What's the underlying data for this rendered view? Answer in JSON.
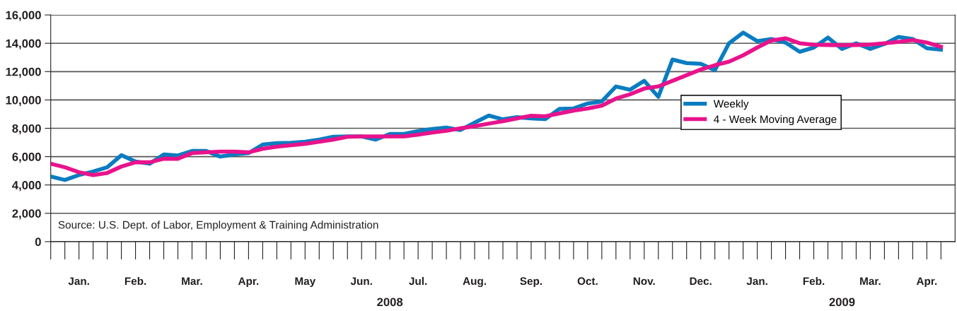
{
  "chart_data": {
    "type": "line",
    "categories": [
      null,
      null,
      "Jan.",
      null,
      null,
      null,
      "Feb.",
      null,
      null,
      null,
      "Mar.",
      null,
      null,
      null,
      "Apr.",
      null,
      null,
      null,
      "May",
      null,
      null,
      null,
      "Jun.",
      null,
      null,
      null,
      "Jul.",
      null,
      null,
      null,
      "Aug.",
      null,
      null,
      null,
      "Sep.",
      null,
      null,
      null,
      "Oct.",
      null,
      null,
      null,
      "Nov.",
      null,
      null,
      null,
      "Dec.",
      null,
      null,
      null,
      "Jan.",
      null,
      null,
      null,
      "Feb.",
      null,
      null,
      null,
      "Mar.",
      null,
      null,
      null,
      "Apr.",
      null
    ],
    "series": [
      {
        "name": "Weekly",
        "color": "#0a7cc1",
        "values": [
          4600,
          4350,
          4700,
          4950,
          5250,
          6100,
          5650,
          5500,
          6150,
          6080,
          6400,
          6400,
          6000,
          6150,
          6250,
          6850,
          6950,
          6980,
          7050,
          7200,
          7400,
          7430,
          7430,
          7200,
          7600,
          7600,
          7800,
          7950,
          8050,
          7880,
          8400,
          8900,
          8630,
          8780,
          8700,
          8650,
          9370,
          9400,
          9750,
          9900,
          10950,
          10720,
          11350,
          10220,
          12850,
          12600,
          12550,
          12100,
          14000,
          14750,
          14150,
          14300,
          14050,
          13400,
          13700,
          14400,
          13600,
          14000,
          13600,
          13950,
          14450,
          14300,
          13650,
          13550
        ]
      },
      {
        "name": "4 - Week Moving Average",
        "color": "#e8138c",
        "values": [
          5500,
          5250,
          4900,
          4700,
          4850,
          5300,
          5600,
          5600,
          5850,
          5850,
          6250,
          6300,
          6350,
          6350,
          6300,
          6550,
          6700,
          6800,
          6900,
          7050,
          7200,
          7400,
          7430,
          7430,
          7430,
          7430,
          7550,
          7700,
          7830,
          8000,
          8150,
          8330,
          8500,
          8700,
          8880,
          8850,
          9050,
          9250,
          9400,
          9600,
          10100,
          10400,
          10800,
          10950,
          11350,
          11750,
          12150,
          12450,
          12700,
          13150,
          13700,
          14200,
          14350,
          14000,
          13900,
          13880,
          13860,
          13880,
          13910,
          14000,
          14100,
          14220,
          14050,
          13750
        ]
      }
    ],
    "ylim": [
      0,
      16000
    ],
    "yticks": [
      {
        "value": 0,
        "label": "0"
      },
      {
        "value": 2000,
        "label": "2,000"
      },
      {
        "value": 4000,
        "label": "4,000"
      },
      {
        "value": 6000,
        "label": "6,000"
      },
      {
        "value": 8000,
        "label": "8,000"
      },
      {
        "value": 10000,
        "label": "10,000"
      },
      {
        "value": 12000,
        "label": "12,000"
      },
      {
        "value": 14000,
        "label": "14,000"
      },
      {
        "value": 16000,
        "label": "16,000"
      }
    ],
    "grid": "y",
    "legend": "right",
    "marker": "none",
    "line_style": "solid",
    "annotations": [
      "Source: U.S. Dept. of Labor, Employment & Training Administration",
      "2008",
      "2009"
    ]
  }
}
